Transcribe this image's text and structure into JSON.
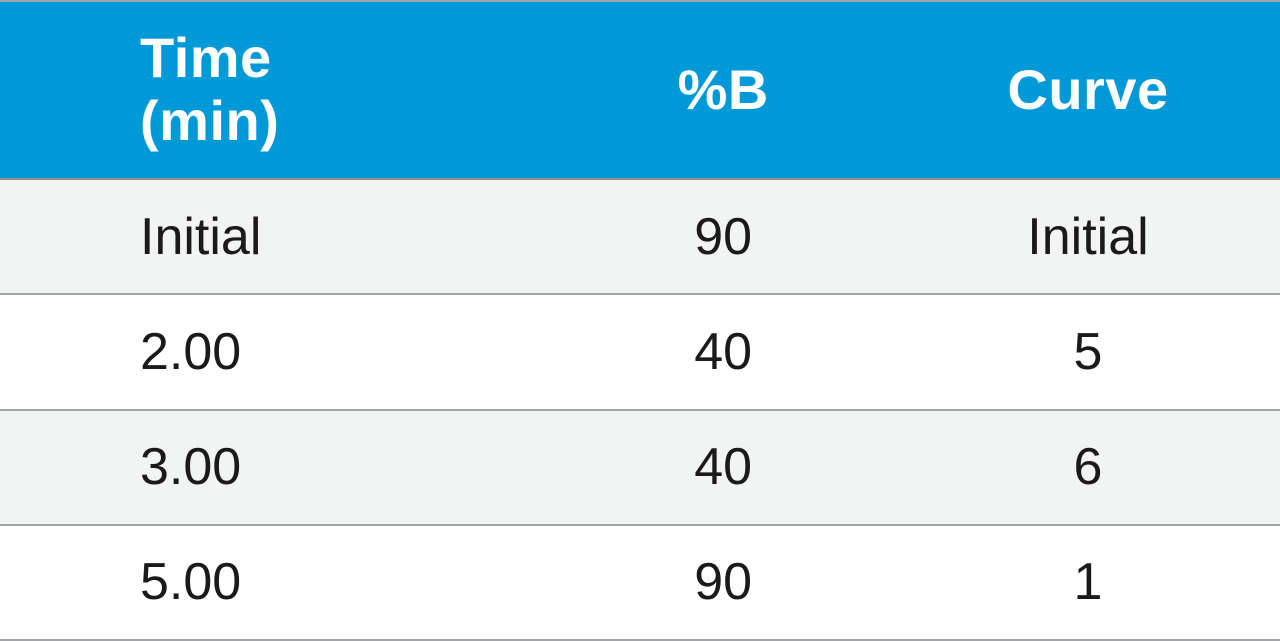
{
  "table": {
    "type": "table",
    "header_bg": "#0099d8",
    "header_fg": "#ffffff",
    "header_fontsize_pt": 42,
    "header_fontweight": "bold",
    "body_fontsize_pt": 39,
    "body_fg": "#1a1a1a",
    "row_bg_odd": "#f2f3f3",
    "row_bg_even": "#ffffff",
    "border_color": "#9fa4a7",
    "columns": [
      {
        "key": "time",
        "label_line1": "Time",
        "label_line2": "(min)",
        "align": "left",
        "width_pct": 43
      },
      {
        "key": "pctB",
        "label_line1": "%B",
        "label_line2": "",
        "align": "center",
        "width_pct": 27
      },
      {
        "key": "curve",
        "label_line1": "Curve",
        "label_line2": "",
        "align": "center",
        "width_pct": 30
      }
    ],
    "rows": [
      {
        "time": "Initial",
        "pctB": "90",
        "curve": "Initial"
      },
      {
        "time": "2.00",
        "pctB": "40",
        "curve": "5"
      },
      {
        "time": "3.00",
        "pctB": "40",
        "curve": "6"
      },
      {
        "time": "5.00",
        "pctB": "90",
        "curve": "1"
      }
    ]
  }
}
